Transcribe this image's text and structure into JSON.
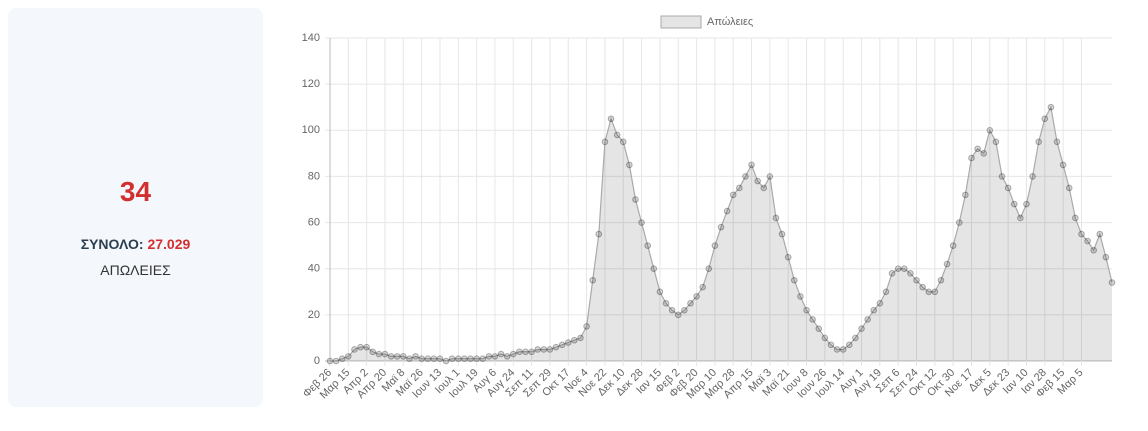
{
  "card": {
    "value": 34,
    "total_label": "ΣΥΝΟΛΟ:",
    "total": "27.029",
    "label": "ΑΠΩΛΕΙΕΣ"
  },
  "chart_data": {
    "type": "line",
    "categories": [
      "Φεβ 26",
      null,
      null,
      "Μαρ 15",
      null,
      null,
      "Απρ 2",
      null,
      null,
      "Απρ 20",
      null,
      null,
      "Μαϊ 8",
      null,
      null,
      "Μαϊ 26",
      null,
      null,
      "Ιουν 13",
      null,
      null,
      "Ιουλ 1",
      null,
      null,
      "Ιουλ 19",
      null,
      null,
      "Αυγ 6",
      null,
      null,
      "Αυγ 24",
      null,
      null,
      "Σεπ 11",
      null,
      null,
      "Σεπ 29",
      null,
      null,
      "Οκτ 17",
      null,
      null,
      "Νοε 4",
      null,
      null,
      "Νοε 22",
      null,
      null,
      "Δεκ 10",
      null,
      null,
      "Δεκ 28",
      null,
      null,
      "Ιαν 15",
      null,
      null,
      "Φεβ 2",
      null,
      null,
      "Φεβ 20",
      null,
      null,
      "Μαρ 10",
      null,
      null,
      "Μαρ 28",
      null,
      null,
      "Απρ 15",
      null,
      null,
      "Μαϊ 3",
      null,
      null,
      "Μαϊ 21",
      null,
      null,
      "Ιουν 8",
      null,
      null,
      "Ιουν 26",
      null,
      null,
      "Ιουλ 14",
      null,
      null,
      "Αυγ 1",
      null,
      null,
      "Αυγ 19",
      null,
      null,
      "Σεπ 6",
      null,
      null,
      "Σεπ 24",
      null,
      null,
      "Οκτ 12",
      null,
      null,
      "Οκτ 30",
      null,
      null,
      "Νοε 17",
      null,
      null,
      "Δεκ 5",
      null,
      null,
      "Δεκ 23",
      null,
      null,
      "Ιαν 10",
      null,
      null,
      "Ιαν 28",
      null,
      null,
      "Φεβ 15",
      null,
      null,
      "Μαρ 5",
      null,
      null,
      null,
      null,
      null
    ],
    "series": [
      {
        "name": "Απώλειες",
        "color": "#aaaaaa",
        "fill": "rgba(0,0,0,0.1)",
        "values": [
          0,
          0,
          1,
          2,
          5,
          6,
          6,
          4,
          3,
          3,
          2,
          2,
          2,
          1,
          2,
          1,
          1,
          1,
          1,
          0,
          1,
          1,
          1,
          1,
          1,
          1,
          2,
          2,
          3,
          2,
          3,
          4,
          4,
          4,
          5,
          5,
          5,
          6,
          7,
          8,
          9,
          10,
          15,
          35,
          55,
          95,
          105,
          98,
          95,
          85,
          70,
          60,
          50,
          40,
          30,
          25,
          22,
          20,
          22,
          25,
          28,
          32,
          40,
          50,
          58,
          65,
          72,
          75,
          80,
          85,
          78,
          75,
          80,
          62,
          55,
          45,
          35,
          28,
          22,
          18,
          14,
          10,
          7,
          5,
          5,
          7,
          10,
          14,
          18,
          22,
          25,
          30,
          38,
          40,
          40,
          38,
          35,
          32,
          30,
          30,
          35,
          42,
          50,
          60,
          72,
          88,
          92,
          90,
          100,
          95,
          80,
          75,
          68,
          62,
          68,
          80,
          95,
          105,
          110,
          95,
          85,
          75,
          62,
          55,
          52,
          48,
          55,
          45,
          34
        ]
      }
    ],
    "ylim": [
      0,
      140
    ],
    "yticks": [
      0,
      20,
      40,
      60,
      80,
      100,
      120,
      140
    ],
    "grid": true,
    "legend": "top"
  }
}
